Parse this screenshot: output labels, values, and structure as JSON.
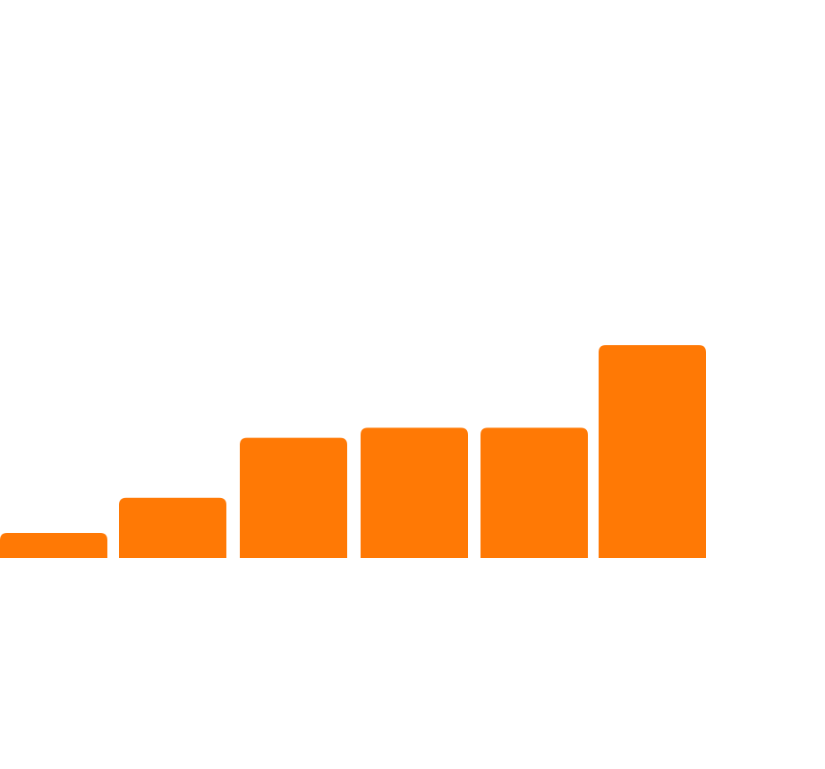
{
  "chart_data": {
    "type": "bar",
    "categories": [
      "",
      "",
      "",
      "",
      "",
      ""
    ],
    "values": [
      1,
      2.4,
      4.8,
      5.2,
      5.2,
      8.5
    ],
    "series": [
      {
        "values": [
          1,
          2.4,
          4.8,
          5.2,
          5.2,
          8.5
        ],
        "color": "#FF7905"
      }
    ],
    "title": "",
    "xlabel": "",
    "ylabel": "",
    "ylim": [
      0,
      10
    ],
    "grid": false,
    "legend": "none"
  },
  "colors": {
    "bar": "#FF7905",
    "background": "#FFFFFF"
  }
}
